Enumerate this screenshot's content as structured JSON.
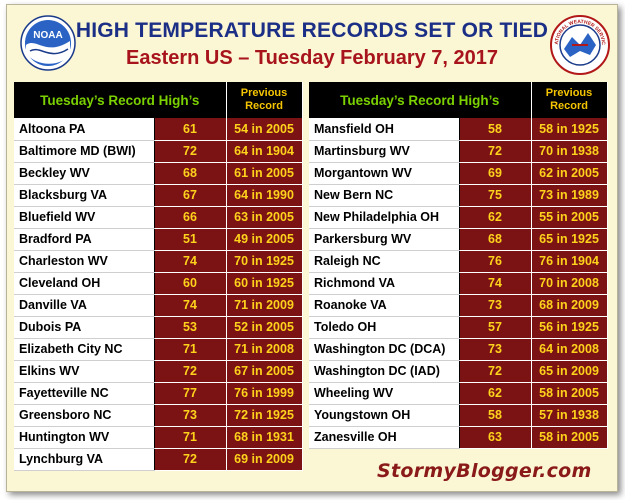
{
  "header": {
    "title": "HIGH TEMPERATURE RECORDS SET OR TIED",
    "subtitle": "Eastern US – Tuesday February 7, 2017",
    "left_logo": "NOAA",
    "right_logo": "NATIONAL WEATHER SERVICE"
  },
  "columns": {
    "city": "Tuesday’s Record High’s",
    "previous_line1": "Previous",
    "previous_line2": "Record"
  },
  "left_table": [
    {
      "city": "Altoona PA",
      "high": "61",
      "previous": "54 in 2005"
    },
    {
      "city": "Baltimore MD (BWI)",
      "high": "72",
      "previous": "64 in 1904"
    },
    {
      "city": "Beckley WV",
      "high": "68",
      "previous": "61 in 2005"
    },
    {
      "city": "Blacksburg VA",
      "high": "67",
      "previous": "64 in 1990"
    },
    {
      "city": "Bluefield WV",
      "high": "66",
      "previous": "63 in 2005"
    },
    {
      "city": "Bradford PA",
      "high": "51",
      "previous": "49 in 2005"
    },
    {
      "city": "Charleston WV",
      "high": "74",
      "previous": "70 in 1925"
    },
    {
      "city": "Cleveland OH",
      "high": "60",
      "previous": "60 in 1925"
    },
    {
      "city": "Danville VA",
      "high": "74",
      "previous": "71 in 2009"
    },
    {
      "city": "Dubois PA",
      "high": "53",
      "previous": "52 in 2005"
    },
    {
      "city": "Elizabeth City NC",
      "high": "71",
      "previous": "71 in 2008"
    },
    {
      "city": "Elkins WV",
      "high": "72",
      "previous": "67 in 2005"
    },
    {
      "city": "Fayetteville NC",
      "high": "77",
      "previous": "76 in 1999"
    },
    {
      "city": "Greensboro NC",
      "high": "73",
      "previous": "72 in 1925"
    },
    {
      "city": "Huntington WV",
      "high": "71",
      "previous": "68 in 1931"
    },
    {
      "city": "Lynchburg VA",
      "high": "72",
      "previous": "69 in 2009"
    }
  ],
  "right_table": [
    {
      "city": "Mansfield OH",
      "high": "58",
      "previous": "58 in 1925"
    },
    {
      "city": "Martinsburg WV",
      "high": "72",
      "previous": "70 in 1938"
    },
    {
      "city": "Morgantown WV",
      "high": "69",
      "previous": "62 in 2005"
    },
    {
      "city": "New Bern NC",
      "high": "75",
      "previous": "73 in 1989"
    },
    {
      "city": "New Philadelphia OH",
      "high": "62",
      "previous": "55 in 2005"
    },
    {
      "city": "Parkersburg WV",
      "high": "68",
      "previous": "65 in 1925"
    },
    {
      "city": "Raleigh NC",
      "high": "76",
      "previous": "76 in 1904"
    },
    {
      "city": "Richmond VA",
      "high": "74",
      "previous": "70 in 2008"
    },
    {
      "city": "Roanoke VA",
      "high": "73",
      "previous": "68 in 2009"
    },
    {
      "city": "Toledo OH",
      "high": "57",
      "previous": "56 in 1925"
    },
    {
      "city": "Washington DC (DCA)",
      "high": "73",
      "previous": "64 in 2008"
    },
    {
      "city": "Washington DC (IAD)",
      "high": "72",
      "previous": "65 in 2009"
    },
    {
      "city": "Wheeling WV",
      "high": "62",
      "previous": "58 in 2005"
    },
    {
      "city": "Youngstown OH",
      "high": "58",
      "previous": "57 in 1938"
    },
    {
      "city": "Zanesville OH",
      "high": "63",
      "previous": "58 in 2005"
    }
  ],
  "footer": {
    "watermark": "StormyBlogger.com"
  },
  "colors": {
    "title": "#1c2f86",
    "subtitle": "#a8141c",
    "cell_background": "#7b1213",
    "cell_text": "#ffd21c",
    "header_green": "#7bd000",
    "header_gold": "#f4c400"
  }
}
